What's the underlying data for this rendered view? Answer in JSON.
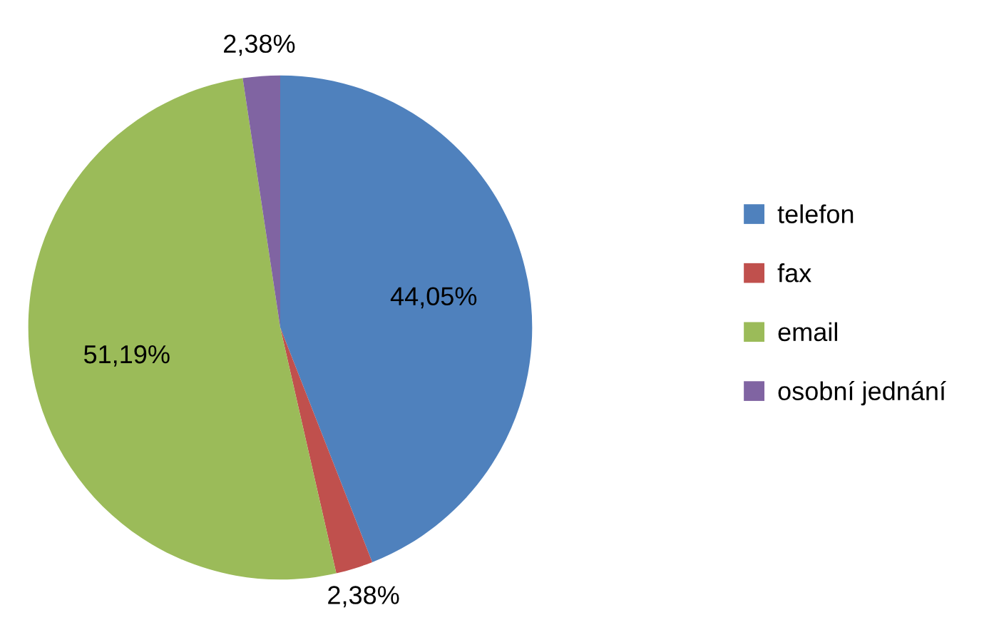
{
  "chart_data": {
    "type": "pie",
    "categories": [
      "telefon",
      "fax",
      "email",
      "osobní jednání"
    ],
    "values": [
      44.05,
      2.38,
      51.19,
      2.38
    ],
    "colors": [
      "#4f81bd",
      "#c0504d",
      "#9bbb59",
      "#8064a2"
    ],
    "value_labels": [
      "44,05%",
      "2,38%",
      "51,19%",
      "2,38%"
    ],
    "legend": "right"
  }
}
